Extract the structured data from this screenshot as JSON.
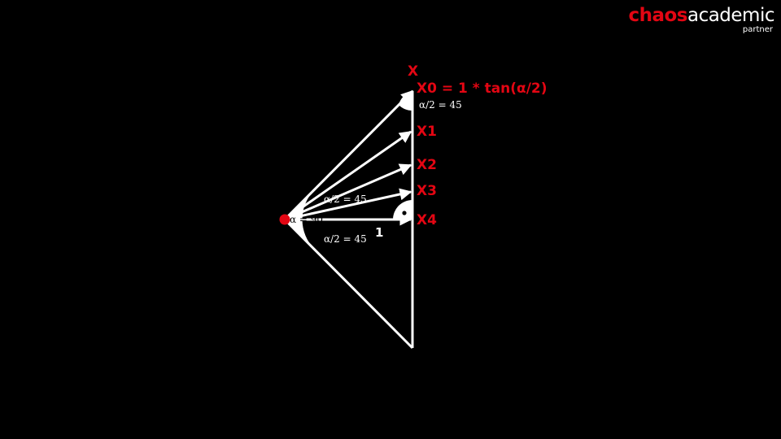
{
  "logo": {
    "brand_red": "chaos",
    "brand_white": "academic",
    "sub": "partner"
  },
  "diagram": {
    "x_label": "X",
    "x0_formula": "X0 = 1 * tan(α/2)",
    "x1_label": "X1",
    "x2_label": "X2",
    "x3_label": "X3",
    "x4_label": "X4",
    "top_angle_label": "α/2 = 45",
    "upper_angle_label": "α/2 = 45",
    "full_angle_label": "α = 90",
    "lower_angle_label": "α/2 = 45",
    "unit_label": "1"
  },
  "colors": {
    "accent_red": "#e30613",
    "line": "#ffffff",
    "background": "#000000"
  }
}
